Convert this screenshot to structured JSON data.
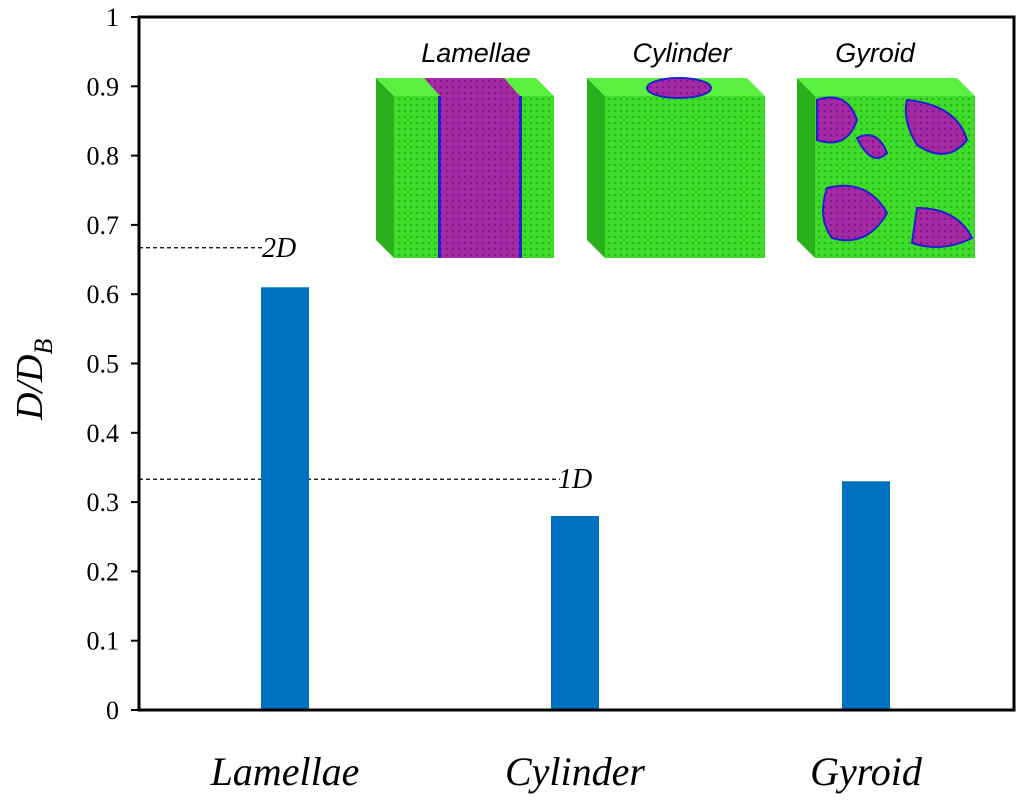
{
  "chart_data": {
    "type": "bar",
    "categories": [
      "Lamellae",
      "Cylinder",
      "Gyroid"
    ],
    "values": [
      0.61,
      0.28,
      0.33
    ],
    "bar_color": "#0070C0",
    "title": "",
    "xlabel": "",
    "ylabel_main": "D/D",
    "ylabel_sub": "B",
    "ylim": [
      0,
      1
    ],
    "yticks": [
      "0",
      "0.1",
      "0.2",
      "0.3",
      "0.4",
      "0.5",
      "0.6",
      "0.7",
      "0.8",
      "0.9",
      "1"
    ],
    "reference_lines": [
      {
        "label": "2D",
        "value": 0.667
      },
      {
        "label": "1D",
        "value": 0.333
      }
    ],
    "insets": [
      {
        "label": "Lamellae",
        "colors": {
          "major": "#33dd22",
          "minor": "#a020a0",
          "interface": "#2020d0"
        }
      },
      {
        "label": "Cylinder",
        "colors": {
          "major": "#33dd22",
          "minor": "#a020a0",
          "interface": "#2020d0"
        }
      },
      {
        "label": "Gyroid",
        "colors": {
          "major": "#33dd22",
          "minor": "#a020a0",
          "interface": "#2020d0"
        }
      }
    ]
  }
}
